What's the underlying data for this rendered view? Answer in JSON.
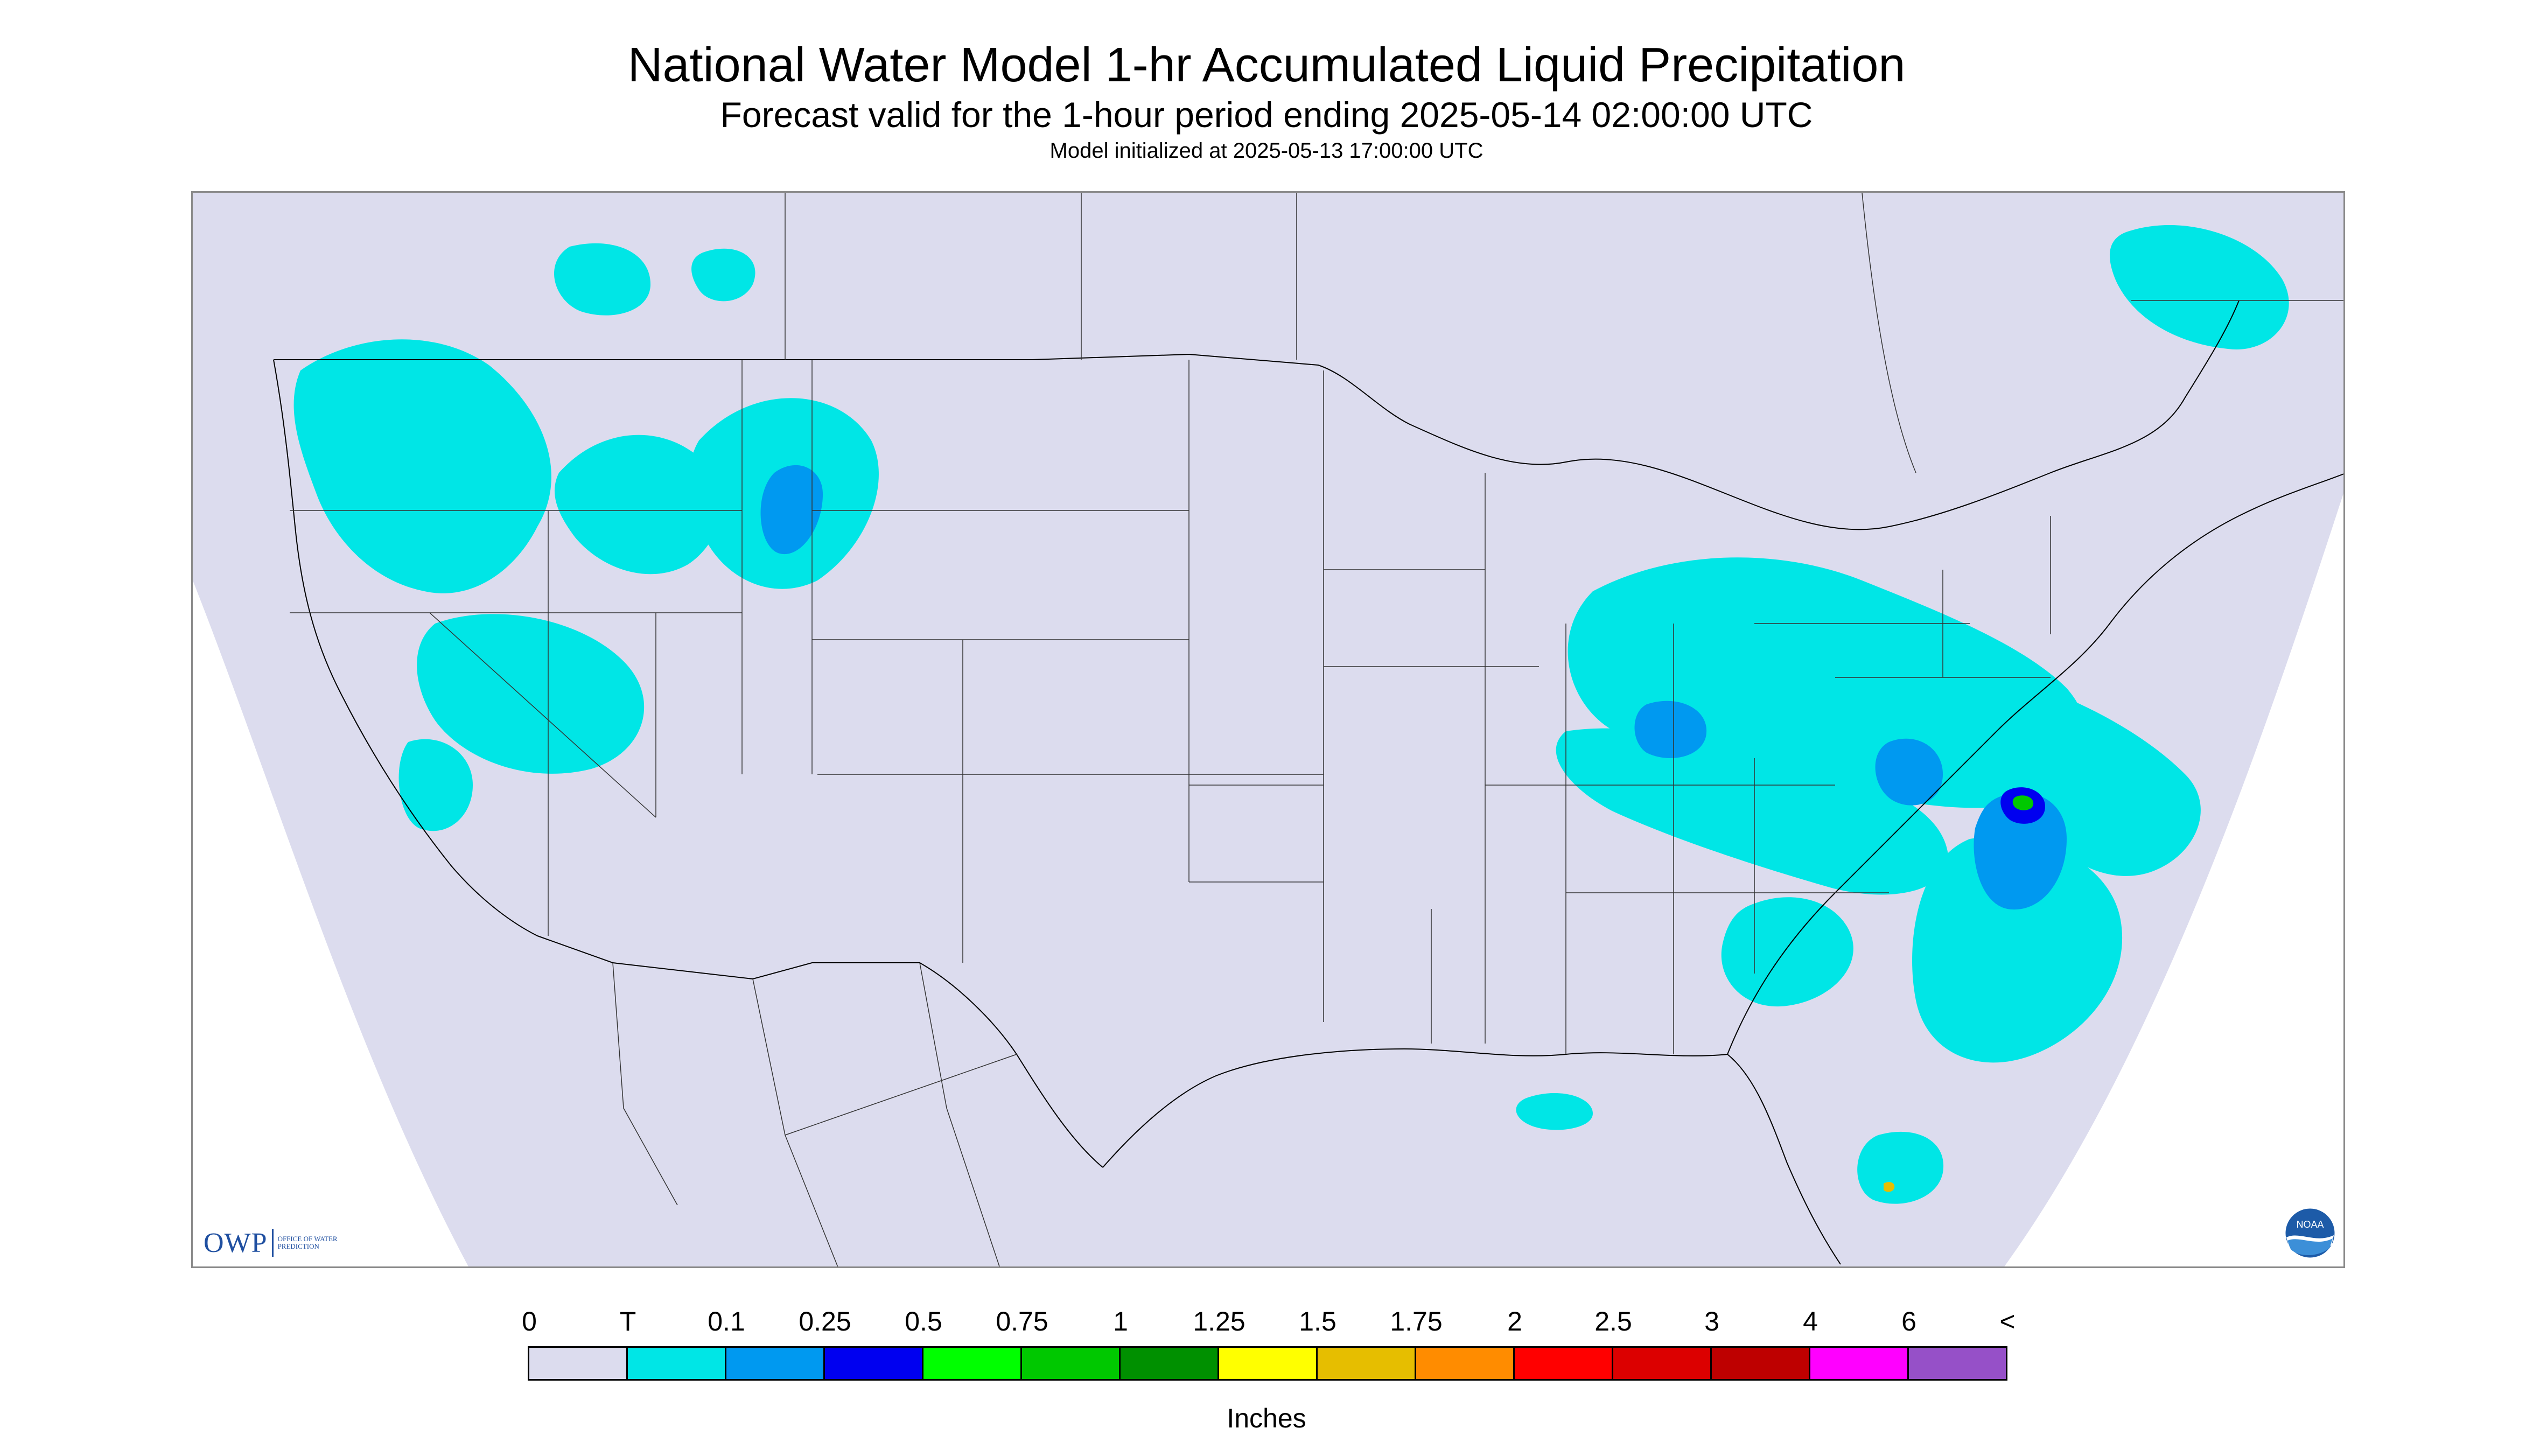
{
  "title": "National Water Model 1-hr Accumulated Liquid Precipitation",
  "subtitle": "Forecast valid for the 1-hour period ending 2025-05-14 02:00:00 UTC",
  "model_init": "Model initialized at 2025-05-13 17:00:00 UTC",
  "logos": {
    "owp_letters": "OWP",
    "owp_text": "OFFICE OF WATER PREDICTION",
    "noaa_text": "NOAA"
  },
  "legend": {
    "label": "Inches",
    "ticks": [
      "0",
      "T",
      "0.1",
      "0.25",
      "0.5",
      "0.75",
      "1",
      "1.25",
      "1.5",
      "1.75",
      "2",
      "2.5",
      "3",
      "4",
      "6",
      "<"
    ],
    "colors": [
      "#dcdcee",
      "#00e6e6",
      "#0099f0",
      "#0000f0",
      "#00ff00",
      "#00c800",
      "#009000",
      "#ffff00",
      "#e6be00",
      "#ff8c00",
      "#ff0000",
      "#dc0000",
      "#be0000",
      "#ff00ff",
      "#9650c8"
    ]
  },
  "colors": {
    "background": "#dcdcee",
    "out_of_domain": "#ffffff",
    "boundary": "#000000",
    "frame": "#8a8a8a"
  }
}
